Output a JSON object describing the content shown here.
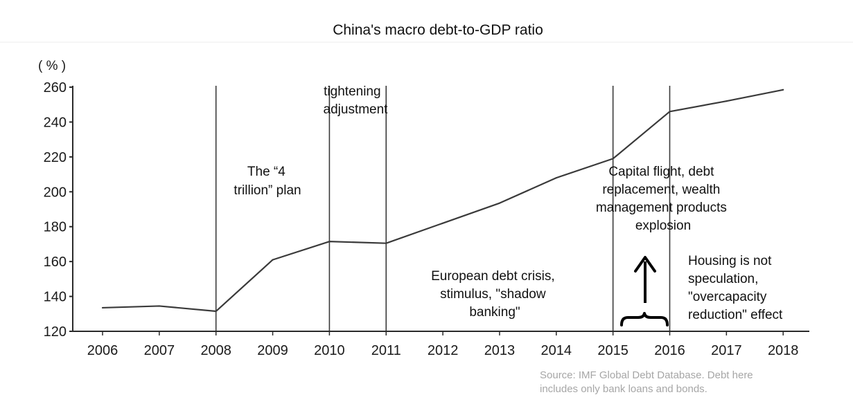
{
  "chart_data": {
    "type": "line",
    "title": "China's macro debt-to-GDP ratio",
    "ylabel": "( % )",
    "xlabel": "",
    "categories": [
      "2006",
      "2007",
      "2008",
      "2009",
      "2010",
      "2011",
      "2012",
      "2013",
      "2014",
      "2015",
      "2016",
      "2017",
      "2018"
    ],
    "series": [
      {
        "name": "Macro debt-to-GDP ratio",
        "values": [
          133.5,
          134.5,
          131.5,
          161,
          171.5,
          170.5,
          182,
          193.5,
          208,
          219,
          246,
          252,
          258.5
        ]
      }
    ],
    "ylim": [
      120,
      260
    ],
    "yticks": [
      "120",
      "140",
      "160",
      "180",
      "200",
      "220",
      "240",
      "260"
    ],
    "color": "#3a3a3a",
    "event_lines": [
      "2008",
      "2010",
      "2011",
      "2015",
      "2016"
    ],
    "annotations": {
      "four_trillion": [
        "The “4",
        "trillion” plan"
      ],
      "tightening": [
        "tightening",
        "adjustment"
      ],
      "euro_crisis": [
        "European debt crisis,",
        "stimulus, \"shadow",
        "banking\""
      ],
      "capital_flight": [
        "Capital flight, debt",
        "replacement, wealth",
        "management products",
        "explosion"
      ],
      "housing": [
        "Housing is not",
        "speculation,",
        "\"overcapacity",
        "reduction\" effect"
      ]
    },
    "source": [
      "Source: IMF Global Debt Database. Debt here",
      "includes only bank loans and bonds."
    ]
  }
}
